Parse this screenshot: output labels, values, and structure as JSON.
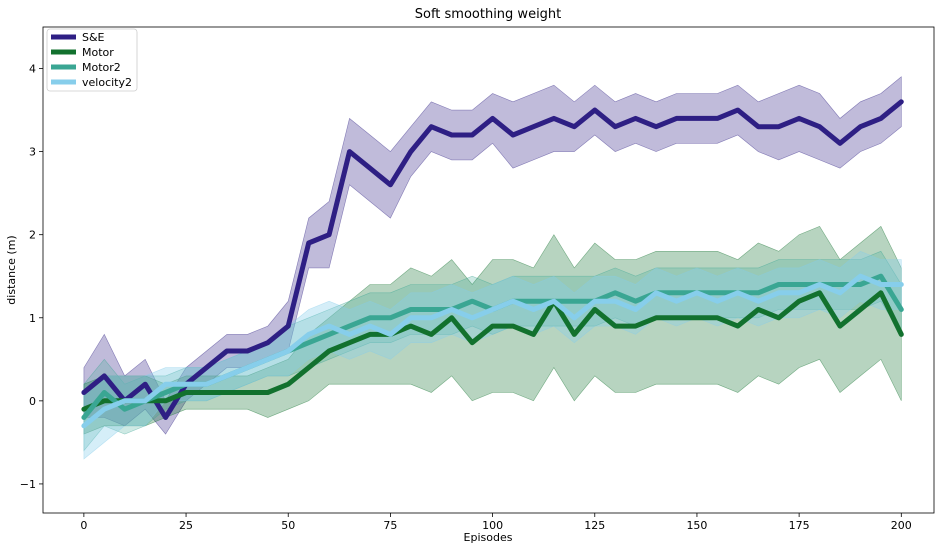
{
  "chart_data": {
    "type": "line",
    "title": "Soft smoothing weight",
    "xlabel": "Episodes",
    "ylabel": "distance (m)",
    "xlim": [
      -10,
      208
    ],
    "ylim": [
      -1.35,
      4.5
    ],
    "xticks": [
      0,
      25,
      50,
      75,
      100,
      125,
      150,
      175,
      200
    ],
    "yticks": [
      -1,
      0,
      1,
      2,
      3,
      4
    ],
    "legend_position": "top-left",
    "grid": false,
    "series": [
      {
        "name": "S&E",
        "color": "#2e1f84",
        "band_opacity": 0.3,
        "x": [
          0,
          5,
          10,
          15,
          20,
          25,
          30,
          35,
          40,
          45,
          50,
          55,
          60,
          65,
          70,
          75,
          80,
          85,
          90,
          95,
          100,
          105,
          110,
          115,
          120,
          125,
          130,
          135,
          140,
          145,
          150,
          155,
          160,
          165,
          170,
          175,
          180,
          185,
          190,
          195,
          200
        ],
        "y": [
          0.1,
          0.3,
          0.0,
          0.2,
          -0.2,
          0.2,
          0.4,
          0.6,
          0.6,
          0.7,
          0.9,
          1.9,
          2.0,
          3.0,
          2.8,
          2.6,
          3.0,
          3.3,
          3.2,
          3.2,
          3.4,
          3.2,
          3.3,
          3.4,
          3.3,
          3.5,
          3.3,
          3.4,
          3.3,
          3.4,
          3.4,
          3.4,
          3.5,
          3.3,
          3.3,
          3.4,
          3.3,
          3.1,
          3.3,
          3.4,
          3.6
        ],
        "spread": [
          0.3,
          0.5,
          0.3,
          0.3,
          0.2,
          0.2,
          0.2,
          0.2,
          0.2,
          0.2,
          0.3,
          0.3,
          0.4,
          0.4,
          0.4,
          0.4,
          0.3,
          0.3,
          0.3,
          0.3,
          0.3,
          0.4,
          0.4,
          0.4,
          0.3,
          0.3,
          0.3,
          0.3,
          0.3,
          0.3,
          0.3,
          0.3,
          0.3,
          0.3,
          0.4,
          0.4,
          0.4,
          0.3,
          0.3,
          0.3,
          0.3
        ]
      },
      {
        "name": "Motor",
        "color": "#12712e",
        "band_opacity": 0.3,
        "x": [
          0,
          5,
          10,
          15,
          20,
          25,
          30,
          35,
          40,
          45,
          50,
          55,
          60,
          65,
          70,
          75,
          80,
          85,
          90,
          95,
          100,
          105,
          110,
          115,
          120,
          125,
          130,
          135,
          140,
          145,
          150,
          155,
          160,
          165,
          170,
          175,
          180,
          185,
          190,
          195,
          200
        ],
        "y": [
          -0.1,
          0.0,
          0.0,
          0.0,
          0.0,
          0.1,
          0.1,
          0.1,
          0.1,
          0.1,
          0.2,
          0.4,
          0.6,
          0.7,
          0.8,
          0.8,
          0.9,
          0.8,
          1.0,
          0.7,
          0.9,
          0.9,
          0.8,
          1.2,
          0.8,
          1.1,
          0.9,
          0.9,
          1.0,
          1.0,
          1.0,
          1.0,
          0.9,
          1.1,
          1.0,
          1.2,
          1.3,
          0.9,
          1.1,
          1.3,
          0.8
        ],
        "spread": [
          0.3,
          0.3,
          0.3,
          0.3,
          0.2,
          0.2,
          0.2,
          0.2,
          0.2,
          0.3,
          0.3,
          0.4,
          0.4,
          0.5,
          0.6,
          0.6,
          0.7,
          0.7,
          0.7,
          0.7,
          0.8,
          0.8,
          0.8,
          0.8,
          0.8,
          0.8,
          0.8,
          0.8,
          0.8,
          0.8,
          0.8,
          0.8,
          0.8,
          0.8,
          0.8,
          0.8,
          0.8,
          0.8,
          0.8,
          0.8,
          0.8
        ]
      },
      {
        "name": "Motor2",
        "color": "#3aa693",
        "band_opacity": 0.25,
        "x": [
          0,
          5,
          10,
          15,
          20,
          25,
          30,
          35,
          40,
          45,
          50,
          55,
          60,
          65,
          70,
          75,
          80,
          85,
          90,
          95,
          100,
          105,
          110,
          115,
          120,
          125,
          130,
          135,
          140,
          145,
          150,
          155,
          160,
          165,
          170,
          175,
          180,
          185,
          190,
          195,
          200
        ],
        "y": [
          -0.2,
          0.1,
          -0.1,
          0.0,
          0.1,
          0.2,
          0.2,
          0.3,
          0.4,
          0.5,
          0.6,
          0.7,
          0.8,
          0.9,
          1.0,
          1.0,
          1.1,
          1.1,
          1.1,
          1.2,
          1.1,
          1.2,
          1.2,
          1.2,
          1.2,
          1.2,
          1.3,
          1.2,
          1.3,
          1.3,
          1.3,
          1.3,
          1.3,
          1.3,
          1.4,
          1.4,
          1.4,
          1.4,
          1.4,
          1.5,
          1.1
        ],
        "spread": [
          0.4,
          0.4,
          0.3,
          0.3,
          0.2,
          0.2,
          0.2,
          0.2,
          0.2,
          0.2,
          0.3,
          0.3,
          0.3,
          0.3,
          0.3,
          0.3,
          0.3,
          0.3,
          0.3,
          0.3,
          0.3,
          0.3,
          0.3,
          0.3,
          0.3,
          0.3,
          0.3,
          0.3,
          0.3,
          0.3,
          0.3,
          0.3,
          0.3,
          0.3,
          0.3,
          0.3,
          0.3,
          0.3,
          0.3,
          0.3,
          0.3
        ]
      },
      {
        "name": "velocity2",
        "color": "#87ceeb",
        "band_opacity": 0.35,
        "x": [
          0,
          5,
          10,
          15,
          20,
          25,
          30,
          35,
          40,
          45,
          50,
          55,
          60,
          65,
          70,
          75,
          80,
          85,
          90,
          95,
          100,
          105,
          110,
          115,
          120,
          125,
          130,
          135,
          140,
          145,
          150,
          155,
          160,
          165,
          170,
          175,
          180,
          185,
          190,
          195,
          200
        ],
        "y": [
          -0.3,
          -0.1,
          0.0,
          0.0,
          0.2,
          0.2,
          0.2,
          0.3,
          0.4,
          0.5,
          0.6,
          0.8,
          0.9,
          0.8,
          0.9,
          0.8,
          1.0,
          1.0,
          1.1,
          1.0,
          1.1,
          1.2,
          1.1,
          1.2,
          1.0,
          1.2,
          1.2,
          1.1,
          1.3,
          1.2,
          1.3,
          1.2,
          1.3,
          1.2,
          1.3,
          1.3,
          1.4,
          1.3,
          1.5,
          1.4,
          1.4
        ],
        "spread": [
          0.4,
          0.4,
          0.3,
          0.3,
          0.2,
          0.2,
          0.2,
          0.2,
          0.2,
          0.2,
          0.3,
          0.3,
          0.3,
          0.3,
          0.3,
          0.3,
          0.3,
          0.3,
          0.3,
          0.3,
          0.3,
          0.3,
          0.3,
          0.3,
          0.3,
          0.3,
          0.3,
          0.3,
          0.3,
          0.3,
          0.3,
          0.3,
          0.3,
          0.3,
          0.3,
          0.3,
          0.3,
          0.3,
          0.3,
          0.3,
          0.3
        ]
      }
    ]
  }
}
